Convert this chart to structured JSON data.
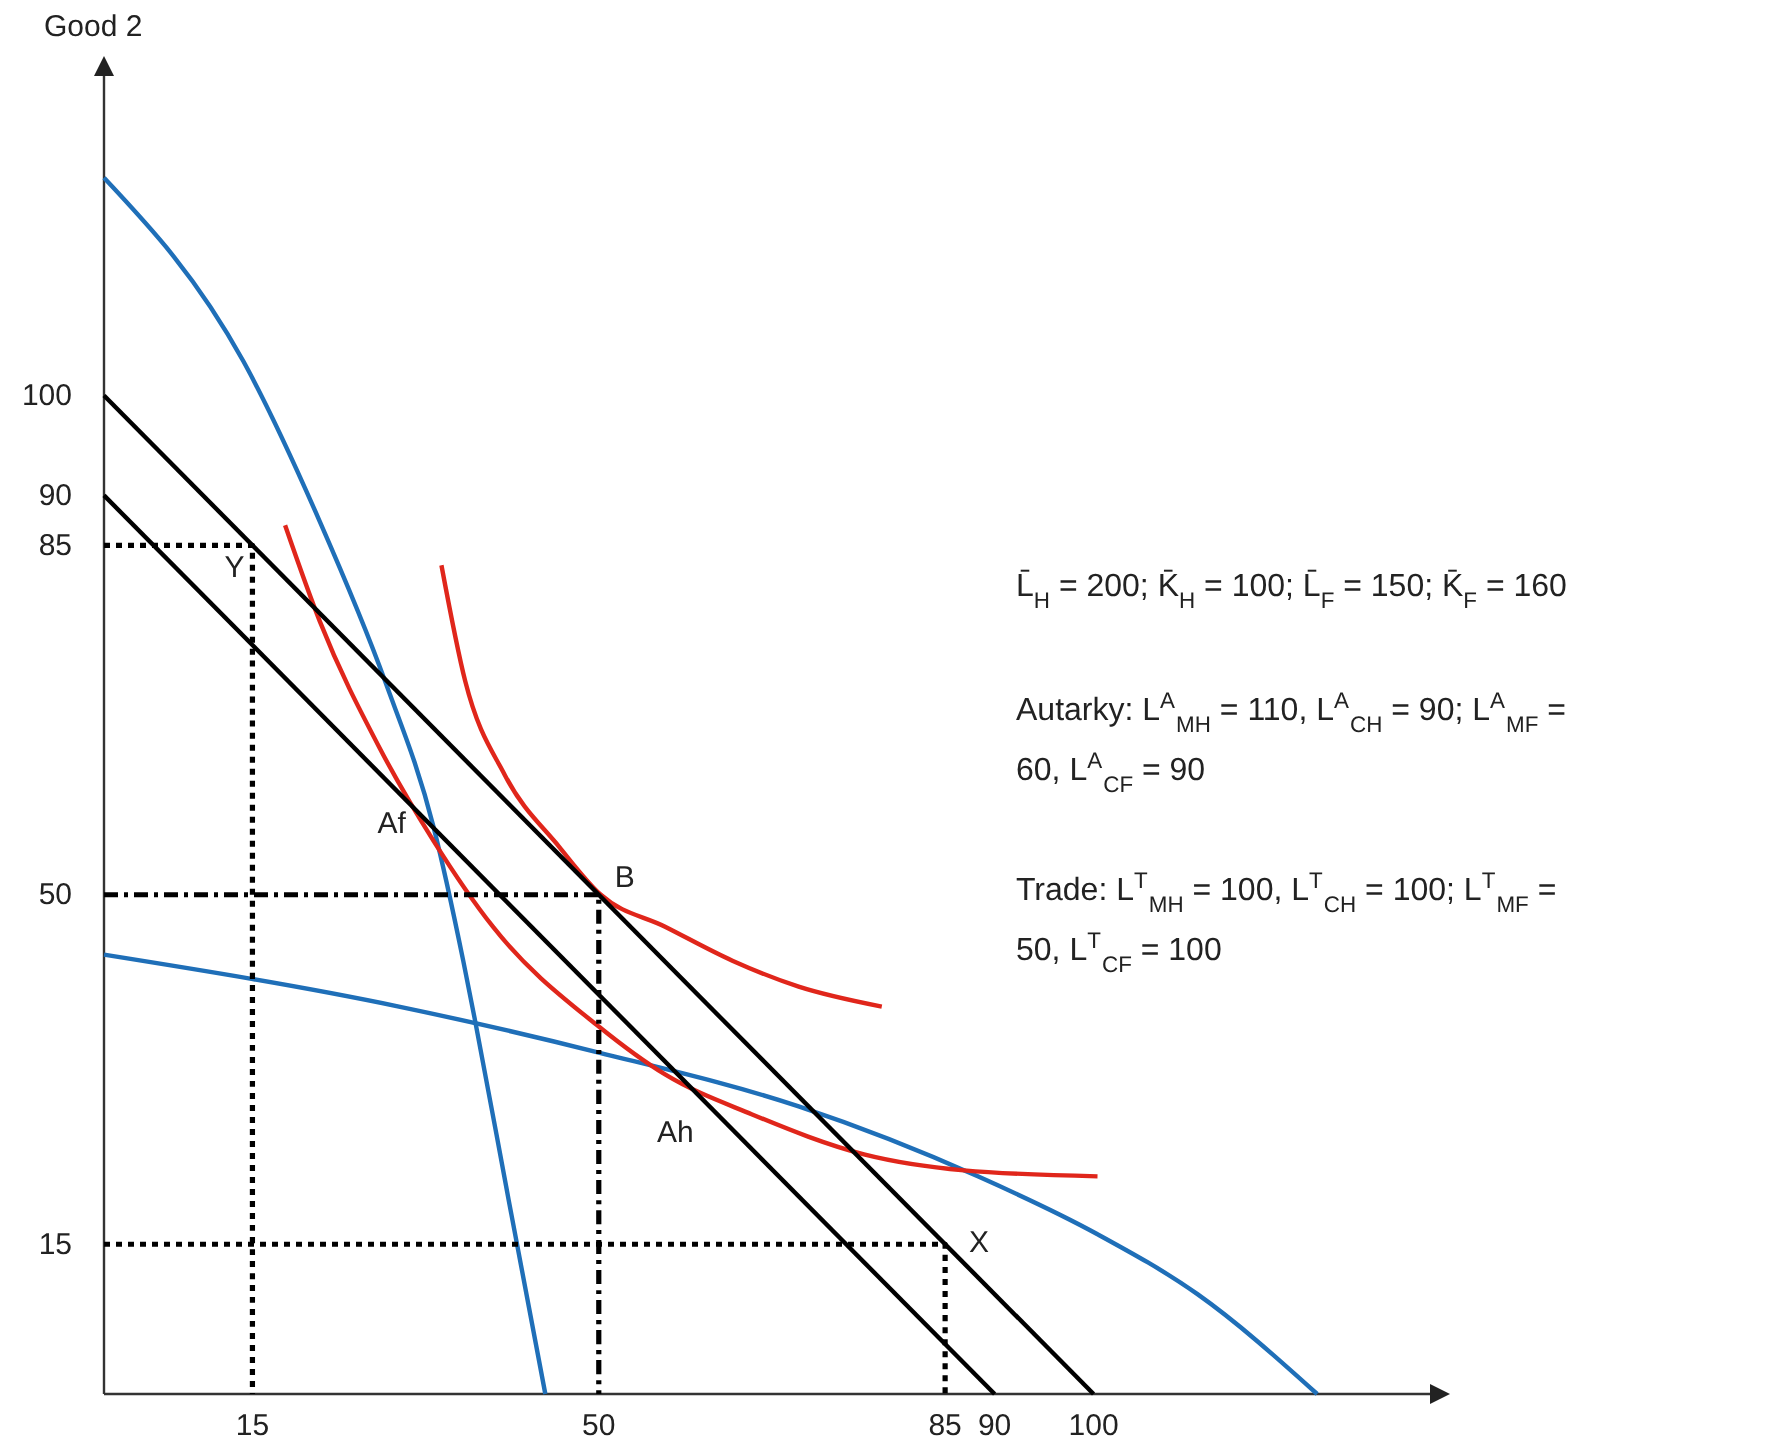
{
  "chart_data": {
    "type": "line",
    "ylabel": "Good 2",
    "xlim": [
      0,
      134
    ],
    "ylim": [
      0,
      132
    ],
    "xticks": [
      15,
      50,
      85,
      90,
      100
    ],
    "yticks": [
      15,
      50,
      85,
      90,
      100
    ],
    "series": [
      {
        "color": "#1f6fb8",
        "x": [
          0,
          14.1,
          21.8,
          28.4,
          33.3,
          36.3,
          37.5,
          40.9,
          44.6
        ],
        "values": [
          121.8,
          103.4,
          87.4,
          71.4,
          56.8,
          43.4,
          37.4,
          19.4,
          0
        ]
      },
      {
        "color": "#1f6fb8",
        "x": [
          0,
          29.8,
          50,
          70.2,
          88.3,
          100.4,
          110.5,
          122.6
        ],
        "values": [
          44,
          38.8,
          34.2,
          28.8,
          21.8,
          16,
          10,
          0
        ]
      },
      {
        "color": "#e0261b",
        "x": [
          18.3,
          21.8,
          27.8,
          33.3,
          39.3,
          50,
          56.7,
          65.5,
          76.8,
          86.9,
          100.4
        ],
        "values": [
          87,
          77.4,
          64.8,
          55.4,
          46.8,
          36.8,
          32,
          28,
          24,
          22.4,
          21.8
        ]
      },
      {
        "color": "#e0261b",
        "x": [
          34.1,
          36.5,
          40.5,
          46,
          50.2,
          56.7,
          63.5,
          70.2,
          78.6
        ],
        "values": [
          83,
          71.4,
          62,
          54.8,
          50,
          46.8,
          43.4,
          40.8,
          38.8
        ]
      },
      {
        "color": "#000000",
        "x": [
          0,
          100
        ],
        "values": [
          100,
          0
        ]
      },
      {
        "color": "#000000",
        "x": [
          0,
          90
        ],
        "values": [
          90,
          0
        ]
      },
      {
        "color": "#000000",
        "line_style": "dotted",
        "x": [
          0,
          15,
          15
        ],
        "values": [
          85,
          85,
          0
        ]
      },
      {
        "color": "#000000",
        "line_style": "dashed",
        "x": [
          0,
          50,
          50
        ],
        "values": [
          50,
          50,
          0
        ]
      },
      {
        "color": "#000000",
        "line_style": "dotted",
        "x": [
          0,
          85,
          85
        ],
        "values": [
          15,
          15,
          0
        ]
      }
    ],
    "annotations": [
      {
        "text": "Y",
        "x": 15,
        "y": 85
      },
      {
        "text": "B",
        "x": 50,
        "y": 50
      },
      {
        "text": "X",
        "x": 85,
        "y": 15
      },
      {
        "text": "Af",
        "x": 33.3,
        "y": 55.4
      },
      {
        "text": "Ah",
        "x": 56.7,
        "y": 32
      },
      "L̄$_{H}$ = 200; K̄$_{H}$ = 100; L̄$_{F}$ = 150; K̄$_{F}$ = 160",
      "Autarky: L$^{A}$$_{MH}$ = 110, L$^{A}$$_{CH}$ = 90; L$^{A}$$_{MF}$ =\n60, L$^{A}$$_{CF}$ = 90",
      "Trade: L$^{T}$$_{MH}$ = 100, L$^{T}$$_{CH}$ = 100; L$^{T}$$_{MF}$ =\n50, L$^{T}$$_{CF}$ = 100"
    ]
  }
}
